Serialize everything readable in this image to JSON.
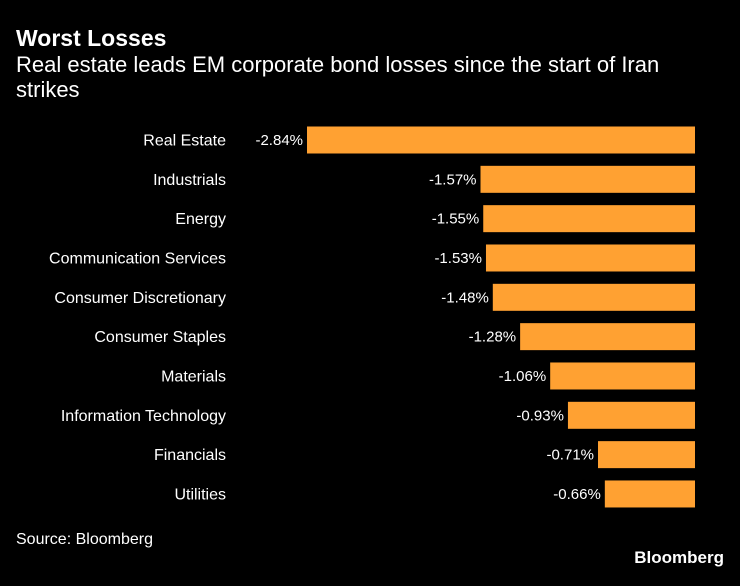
{
  "chart_data": {
    "type": "bar",
    "orientation": "horizontal",
    "title": "Worst Losses",
    "subtitle": "Real estate leads EM corporate bond losses since the start of Iran strikes",
    "categories": [
      "Real Estate",
      "Industrials",
      "Energy",
      "Communication Services",
      "Consumer Discretionary",
      "Consumer Staples",
      "Materials",
      "Information Technology",
      "Financials",
      "Utilities"
    ],
    "values": [
      -2.84,
      -1.57,
      -1.55,
      -1.53,
      -1.48,
      -1.28,
      -1.06,
      -0.93,
      -0.71,
      -0.66
    ],
    "value_labels": [
      "-2.84%",
      "-1.57%",
      "-1.55%",
      "-1.53%",
      "-1.48%",
      "-1.28%",
      "-1.06%",
      "-0.93%",
      "-0.71%",
      "-0.66%"
    ],
    "grid": false,
    "legend": "none",
    "colors": {
      "bar": "#FFA132",
      "background": "#000000",
      "text": "#FFFFFF"
    }
  },
  "source": "Source: Bloomberg",
  "logo": "Bloomberg"
}
